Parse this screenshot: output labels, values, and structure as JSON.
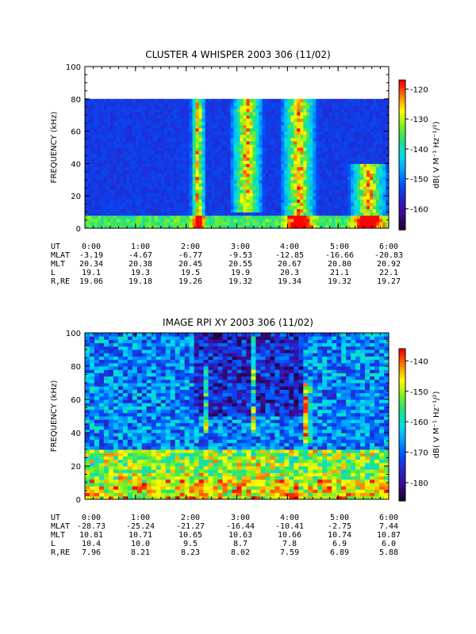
{
  "chart_data": [
    {
      "type": "heatmap",
      "title": "CLUSTER 4 WHISPER 2003 306 (11/02)",
      "ylabel": "FREQUENCY (kHz)",
      "yticks": [
        "0",
        "20",
        "40",
        "60",
        "80",
        "100"
      ],
      "ylim": [
        0,
        100
      ],
      "data_max_frequency_khz": 80,
      "xticks": [
        "0:00",
        "1:00",
        "2:00",
        "3:00",
        "4:00",
        "5:00",
        "6:00"
      ],
      "xlim_hours": [
        0,
        6
      ],
      "colorbar": {
        "label": "dB( V M⁻¹ Hz⁻¹/²)",
        "ticks": [
          "-120",
          "-130",
          "-140",
          "-150",
          "-160"
        ],
        "range_db": [
          -167,
          -117
        ]
      },
      "features": [
        {
          "time_hours": [
            2.12,
            2.35
          ],
          "frequency_khz": [
            0,
            80
          ],
          "description": "intense emission"
        },
        {
          "time_hours": [
            2.95,
            3.45
          ],
          "frequency_khz": [
            10,
            80
          ],
          "description": "intense emission"
        },
        {
          "time_hours": [
            3.95,
            4.5
          ],
          "frequency_khz": [
            0,
            80
          ],
          "description": "intense emission"
        },
        {
          "time_hours": [
            5.3,
            5.9
          ],
          "frequency_khz": [
            0,
            40
          ],
          "description": "diffuse enhancement"
        }
      ],
      "ephemeris": {
        "rows": [
          {
            "label": "UT",
            "values": [
              "0:00",
              "1:00",
              "2:00",
              "3:00",
              "4:00",
              "5:00",
              "6:00"
            ]
          },
          {
            "label": "MLAT",
            "values": [
              "-3.19",
              "-4.67",
              "-6.77",
              "-9.53",
              "-12.85",
              "-16.66",
              "-20.83"
            ]
          },
          {
            "label": "MLT",
            "values": [
              "20.34",
              "20.38",
              "20.45",
              "20.55",
              "20.67",
              "20.80",
              "20.92"
            ]
          },
          {
            "label": "L",
            "values": [
              "19.1",
              "19.3",
              "19.5",
              "19.9",
              "20.3",
              "21.1",
              "22.1"
            ]
          },
          {
            "label": "R,RE",
            "values": [
              "19.06",
              "19.18",
              "19.26",
              "19.32",
              "19.34",
              "19.32",
              "19.27"
            ]
          }
        ]
      }
    },
    {
      "type": "heatmap",
      "title": "IMAGE RPI XY 2003 306 (11/02)",
      "ylabel": "FREQUENCY (kHz)",
      "yticks": [
        "0",
        "20",
        "40",
        "60",
        "80",
        "100"
      ],
      "ylim": [
        0,
        100
      ],
      "xticks": [
        "0:00",
        "1:00",
        "2:00",
        "3:00",
        "4:00",
        "5:00",
        "6:00"
      ],
      "xlim_hours": [
        0,
        6
      ],
      "colorbar": {
        "label": "dB( V M⁻¹ Hz⁻¹/²)",
        "ticks": [
          "-140",
          "-150",
          "-160",
          "-170",
          "-180"
        ],
        "range_db": [
          -186,
          -136
        ]
      },
      "features": [
        {
          "time_hours": [
            2.35,
            2.4
          ],
          "frequency_khz": [
            40,
            80
          ],
          "description": "narrow emission"
        },
        {
          "time_hours": [
            3.3,
            3.4
          ],
          "frequency_khz": [
            40,
            100
          ],
          "description": "emission"
        },
        {
          "time_hours": [
            4.3,
            4.45
          ],
          "frequency_khz": [
            35,
            70
          ],
          "description": "intense emission"
        }
      ],
      "ephemeris": {
        "rows": [
          {
            "label": "UT",
            "values": [
              "0:00",
              "1:00",
              "2:00",
              "3:00",
              "4:00",
              "5:00",
              "6:00"
            ]
          },
          {
            "label": "MLAT",
            "values": [
              "-28.73",
              "-25.24",
              "-21.27",
              "-16.44",
              "-10.41",
              "-2.75",
              "7.44"
            ]
          },
          {
            "label": "MLT",
            "values": [
              "10.81",
              "10.71",
              "10.65",
              "10.63",
              "10.66",
              "10.74",
              "10.87"
            ]
          },
          {
            "label": "L",
            "values": [
              "10.4",
              "10.0",
              "9.5",
              "8.7",
              "7.8",
              "6.9",
              "6.0"
            ]
          },
          {
            "label": "R,RE",
            "values": [
              "7.96",
              "8.21",
              "8.23",
              "8.02",
              "7.59",
              "6.89",
              "5.88"
            ]
          }
        ]
      }
    }
  ],
  "colors": {
    "frame": "#000000",
    "background": "#ffffff",
    "colormap": [
      "#1a0030",
      "#3c0a8c",
      "#2824c8",
      "#0050ff",
      "#00a0ff",
      "#00e0e8",
      "#20e080",
      "#80f020",
      "#ffff00",
      "#ff8000",
      "#ff0000"
    ]
  }
}
